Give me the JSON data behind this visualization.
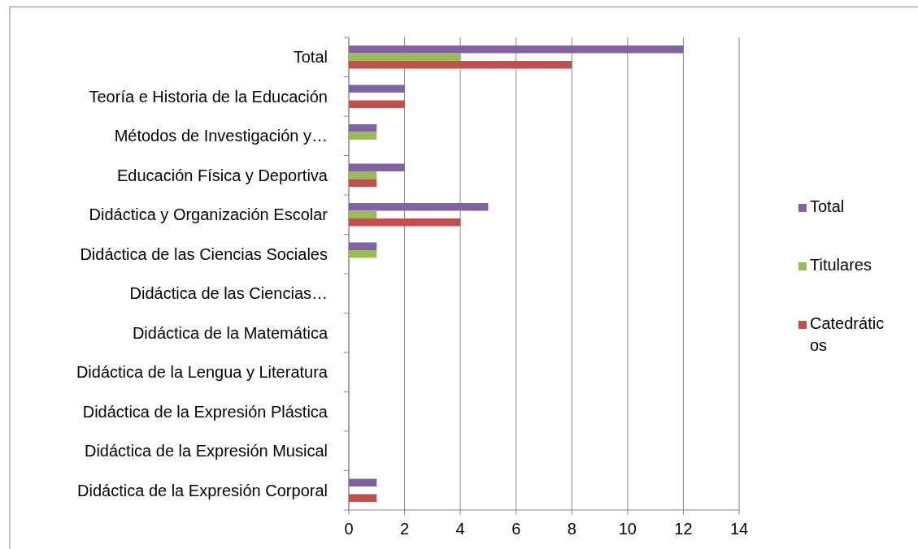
{
  "chart_data": {
    "type": "bar",
    "orientation": "horizontal",
    "categories": [
      "Total",
      "Teoría e Historia de la Educación",
      "Métodos de Investigación y…",
      "Educación Física y Deportiva",
      "Didáctica y Organización Escolar",
      "Didáctica de las Ciencias Sociales",
      "Didáctica de las Ciencias…",
      "Didáctica de la Matemática",
      "Didáctica de la Lengua y Literatura",
      "Didáctica de la Expresión Plástica",
      "Didáctica de la Expresión Musical",
      "Didáctica de la Expresión Corporal"
    ],
    "series": [
      {
        "name": "Total",
        "color": "#8064a2",
        "values": [
          12,
          2,
          1,
          2,
          5,
          1,
          0,
          0,
          0,
          0,
          0,
          1
        ]
      },
      {
        "name": "Titulares",
        "color": "#9bbb59",
        "values": [
          4,
          0,
          1,
          1,
          1,
          1,
          0,
          0,
          0,
          0,
          0,
          0
        ]
      },
      {
        "name": "Catedráticos",
        "color": "#c0504d",
        "values": [
          8,
          2,
          0,
          1,
          4,
          0,
          0,
          0,
          0,
          0,
          0,
          1
        ]
      }
    ],
    "xlim": [
      0,
      14
    ],
    "xticks": [
      0,
      2,
      4,
      6,
      8,
      10,
      12,
      14
    ],
    "grid": "x",
    "legend": "right"
  }
}
